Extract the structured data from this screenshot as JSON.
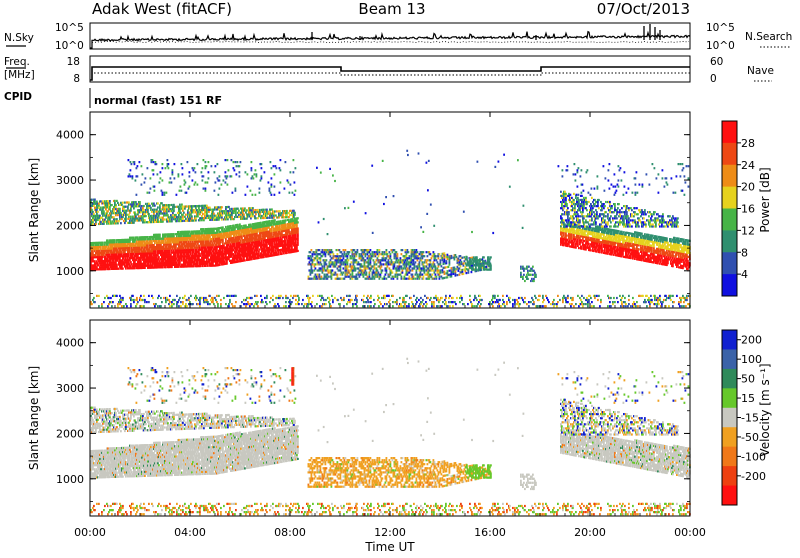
{
  "header": {
    "station": "Adak West (fitACF)",
    "beam": "Beam 13",
    "date": "07/Oct/2013"
  },
  "nsky_panel": {
    "left_label": "N.Sky",
    "right_label": "N.Search",
    "left_ticks": [
      "10^5",
      "10^0"
    ],
    "right_ticks": [
      "10^5",
      "10^0"
    ]
  },
  "freq_panel": {
    "left_label_1": "Freq.",
    "left_label_2": "[MHz]",
    "right_label": "Nave",
    "left_ticks": [
      "18",
      "8"
    ],
    "right_ticks": [
      "60",
      "0"
    ]
  },
  "cpid": {
    "label": "CPID",
    "value": "normal (fast) 151 RF"
  },
  "chart_data": [
    {
      "type": "heatmap",
      "name": "power",
      "ylabel": "Slant Range [km]",
      "ylim": [
        180,
        4500
      ],
      "yticks": [
        "1000",
        "2000",
        "3000",
        "4000"
      ],
      "colorbar_label": "Power [dB]",
      "colorbar_ticks": [
        "4",
        "8",
        "12",
        "16",
        "20",
        "24",
        "28"
      ],
      "colors": [
        "#1010e0",
        "#3050b0",
        "#2f8f6f",
        "#47b447",
        "#e6d21e",
        "#ee8c17",
        "#ee4814",
        "#ff1010"
      ]
    },
    {
      "type": "heatmap",
      "name": "velocity",
      "ylabel": "Slant Range [km]",
      "ylim": [
        180,
        4500
      ],
      "yticks": [
        "1000",
        "2000",
        "3000",
        "4000"
      ],
      "colorbar_label": "Velocity [m s⁻¹]",
      "colorbar_ticks": [
        "200",
        "100",
        "50",
        "15",
        "-15",
        "-50",
        "-100",
        "-200"
      ],
      "colors": [
        "#1020d0",
        "#3a62a8",
        "#2f8a5a",
        "#66c82a",
        "#c8c8c0",
        "#f0a020",
        "#f07818",
        "#ee4010",
        "#ff1010"
      ]
    }
  ],
  "xaxis": {
    "label": "Time UT",
    "ticks": [
      "00:00",
      "04:00",
      "08:00",
      "12:00",
      "16:00",
      "20:00",
      "00:00"
    ]
  }
}
